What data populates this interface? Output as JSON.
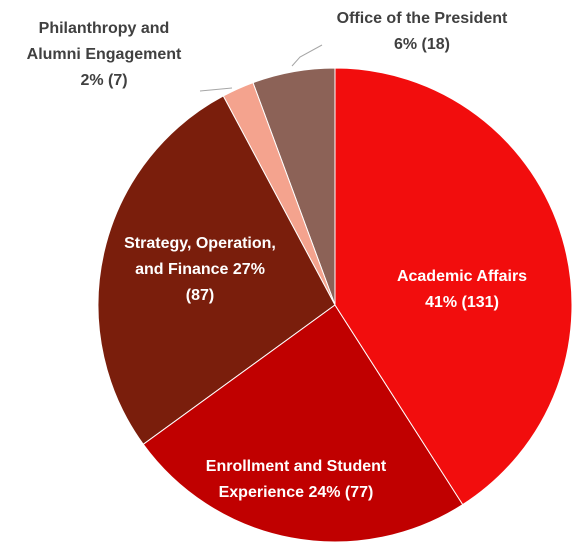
{
  "chart_data": {
    "type": "pie",
    "categories": [
      "Academic Affairs",
      "Enrollment and Student Experience",
      "Strategy, Operation, and Finance",
      "Philanthropy and Alumni Engagement",
      "Office of the President"
    ],
    "values": [
      131,
      77,
      87,
      7,
      18
    ],
    "value_labels": [
      "41% (131)",
      "24% (77)",
      "27% (87)",
      "2% (7)",
      "6% (18)"
    ],
    "colors": [
      "#f20d0d",
      "#c00000",
      "#7a1e0c",
      "#f4a38e",
      "#8c6257"
    ]
  }
}
